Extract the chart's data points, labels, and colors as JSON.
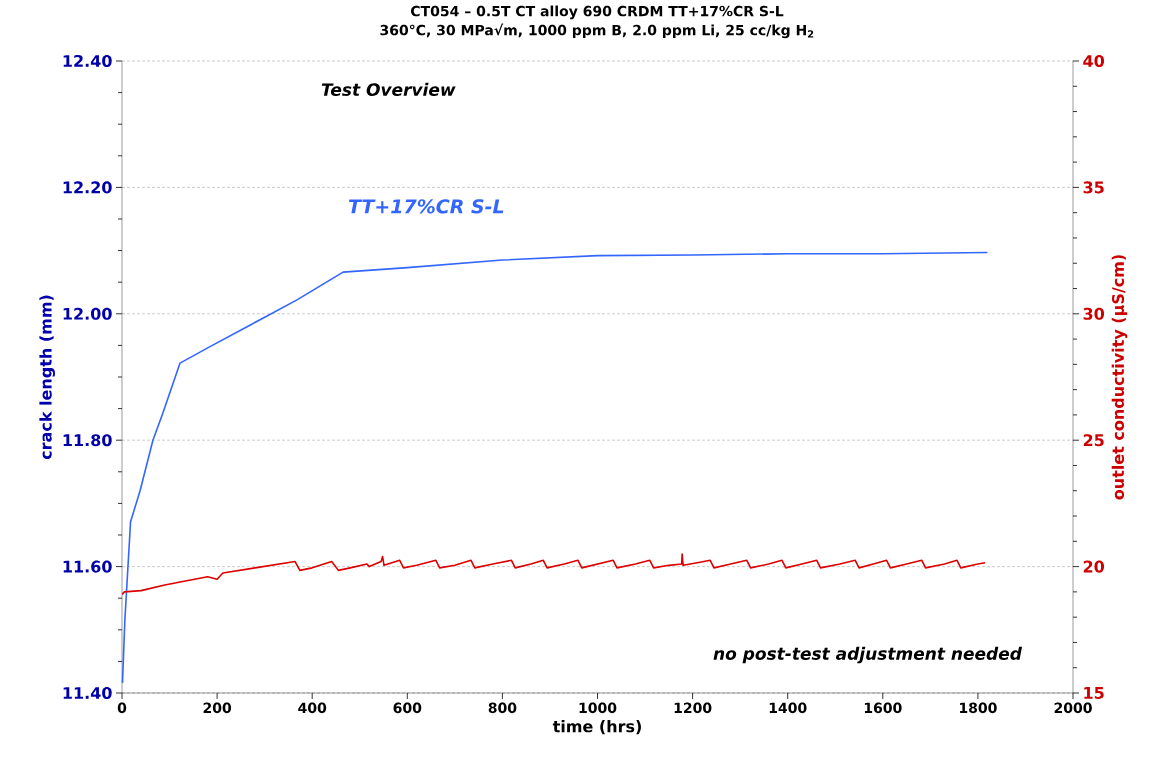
{
  "chart_data": {
    "type": "line",
    "title": "CT054 – 0.5T CT alloy 690 CRDM TT+17%CR S-L",
    "subtitle": "360°C, 30 MPa√m, 1000 ppm B, 2.0 ppm Li, 25 cc/kg H$_{2}$",
    "xlabel": "time (hrs)",
    "ylabel": "crack length (mm)",
    "y2label": "outlet conductivity (µS/cm)",
    "annotations": [
      "Test Overview",
      "no post-test adjustment needed"
    ],
    "xlim": [
      0,
      2000
    ],
    "xticks": [
      0,
      200,
      400,
      600,
      800,
      1000,
      1200,
      1400,
      1600,
      1800,
      2000
    ],
    "ylim": [
      11.4,
      12.4
    ],
    "yticks": [
      {
        "value": 11.4,
        "label": "11.40"
      },
      {
        "value": 11.6,
        "label": "11.60"
      },
      {
        "value": 11.8,
        "label": "11.80"
      },
      {
        "value": 12.0,
        "label": "12.00"
      },
      {
        "value": 12.2,
        "label": "12.20"
      },
      {
        "value": 12.4,
        "label": "12.40"
      }
    ],
    "y2lim": [
      15,
      40
    ],
    "y2ticks": [
      15,
      20,
      25,
      30,
      35,
      40
    ],
    "grid": "y",
    "legend": false,
    "marker": "none",
    "line_style": "solid",
    "series": [
      {
        "name": "TT+17%CR S-L",
        "color": "#3366ff",
        "x": [
          1,
          6,
          18,
          38,
          65,
          86,
          122,
          185,
          269,
          368,
          465,
          600,
          800,
          1000,
          1200,
          1400,
          1600,
          1820
        ],
        "values": [
          11.416,
          11.515,
          11.671,
          11.72,
          11.8,
          11.843,
          11.922,
          11.948,
          11.982,
          12.022,
          12.066,
          12.073,
          12.085,
          12.092,
          12.093,
          12.095,
          12.095,
          12.097
        ]
      },
      {
        "color": "#dd0000",
        "axis": "y2",
        "x": [
          0,
          5,
          40,
          90,
          125,
          180,
          200,
          212,
          280,
          364,
          374,
          400,
          441,
          455,
          480,
          515,
          520,
          545,
          548,
          551,
          584,
          592,
          620,
          660,
          668,
          700,
          734,
          742,
          780,
          819,
          827,
          860,
          886,
          894,
          930,
          959,
          967,
          1000,
          1033,
          1041,
          1080,
          1110,
          1118,
          1150,
          1177,
          1178,
          1180,
          1210,
          1237,
          1245,
          1280,
          1314,
          1322,
          1360,
          1388,
          1396,
          1430,
          1461,
          1469,
          1510,
          1542,
          1550,
          1580,
          1608,
          1616,
          1650,
          1682,
          1690,
          1730,
          1756,
          1764,
          1800,
          1815
        ],
        "values": [
          18.9,
          19.0,
          19.05,
          19.27,
          19.4,
          19.6,
          19.5,
          19.75,
          19.95,
          20.2,
          19.85,
          19.95,
          20.2,
          19.85,
          19.95,
          20.1,
          20.0,
          20.2,
          20.4,
          20.05,
          20.25,
          19.95,
          20.05,
          20.25,
          19.95,
          20.05,
          20.25,
          19.95,
          20.1,
          20.25,
          19.95,
          20.1,
          20.25,
          19.95,
          20.1,
          20.25,
          19.95,
          20.1,
          20.25,
          19.95,
          20.1,
          20.25,
          19.95,
          20.05,
          20.1,
          20.5,
          20.05,
          20.15,
          20.25,
          19.95,
          20.1,
          20.25,
          19.95,
          20.1,
          20.25,
          19.95,
          20.1,
          20.25,
          19.95,
          20.1,
          20.25,
          19.95,
          20.1,
          20.25,
          19.95,
          20.1,
          20.25,
          19.95,
          20.1,
          20.25,
          19.95,
          20.1,
          20.15
        ]
      }
    ]
  }
}
